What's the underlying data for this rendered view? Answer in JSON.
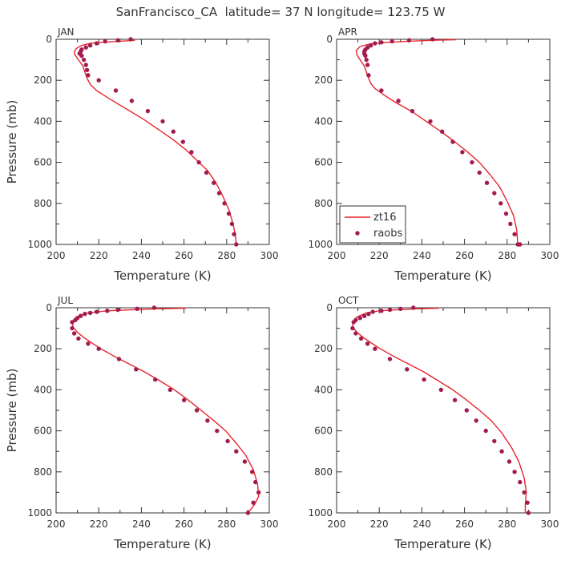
{
  "chart_data": {
    "type": "line",
    "title": "SanFrancisco_CA  latitude= 37 N longitude= 123.75 W",
    "xlabel": "Temperature (K)",
    "ylabel": "Pressure (mb)",
    "xlim": [
      200,
      300
    ],
    "ylim": [
      1000,
      0
    ],
    "xticks": [
      "200",
      "220",
      "240",
      "260",
      "280",
      "300"
    ],
    "yticks": [
      "0",
      "200",
      "400",
      "600",
      "800",
      "1000"
    ],
    "legend": {
      "location": "lower-left",
      "panel": "APR",
      "entries": [
        "zt16",
        "raobs"
      ]
    },
    "colors": {
      "model": "#e8262c",
      "obs": "#a31c50",
      "axis": "#333333"
    },
    "panels": [
      {
        "month": "JAN",
        "model": {
          "name": "zt16",
          "temperature": [
            237,
            229,
            222,
            216,
            212,
            209.5,
            208.5,
            208.8,
            210.5,
            212.5,
            213.5,
            214.5,
            216,
            219,
            225,
            233,
            241,
            248,
            255,
            261,
            266,
            271,
            275,
            278,
            281,
            283,
            284,
            284.5
          ],
          "pressure": [
            5,
            10,
            15,
            20,
            30,
            45,
            60,
            75,
            100,
            130,
            160,
            190,
            220,
            250,
            290,
            340,
            390,
            440,
            490,
            540,
            590,
            640,
            700,
            760,
            830,
            900,
            950,
            1000
          ]
        },
        "raobs": {
          "name": "raobs",
          "temperature": [
            235,
            229,
            223,
            219,
            216,
            214,
            212,
            211.5,
            211,
            212,
            213,
            214,
            214.5,
            215,
            220,
            228,
            235.5,
            243,
            250,
            255,
            259.5,
            263.5,
            267,
            270.5,
            274,
            276.5,
            279,
            281,
            282.5,
            283.5,
            284.5
          ],
          "pressure": [
            0,
            5,
            10,
            20,
            30,
            40,
            50,
            60,
            70,
            80,
            100,
            125,
            150,
            175,
            200,
            250,
            300,
            350,
            400,
            450,
            500,
            550,
            600,
            650,
            700,
            750,
            800,
            850,
            900,
            950,
            1000
          ]
        }
      },
      {
        "month": "APR",
        "model": {
          "name": "zt16",
          "temperature": [
            256,
            244,
            233,
            224,
            216,
            211,
            209.2,
            209.5,
            211,
            213,
            214,
            215,
            216,
            218,
            222,
            228,
            235,
            242,
            249,
            255.5,
            261.5,
            267,
            272,
            276.5,
            280,
            283,
            284.5,
            285
          ],
          "pressure": [
            2,
            5,
            10,
            15,
            22,
            35,
            55,
            75,
            100,
            130,
            160,
            190,
            215,
            240,
            270,
            310,
            350,
            400,
            450,
            500,
            550,
            600,
            660,
            720,
            790,
            860,
            930,
            1000
          ]
        },
        "raobs": {
          "name": "raobs",
          "temperature": [
            245,
            234,
            226,
            221,
            218,
            216,
            214.5,
            213.5,
            213,
            213,
            213.5,
            214,
            214.5,
            215,
            221,
            229,
            235.5,
            244,
            249.5,
            254.5,
            259,
            263.5,
            267,
            270.5,
            274,
            277,
            279.5,
            281.5,
            283.5,
            285,
            286
          ],
          "pressure": [
            0,
            5,
            10,
            15,
            20,
            30,
            40,
            50,
            60,
            70,
            80,
            100,
            125,
            175,
            250,
            300,
            350,
            400,
            450,
            500,
            550,
            600,
            650,
            700,
            750,
            800,
            850,
            900,
            950,
            1000,
            1000
          ]
        }
      },
      {
        "month": "JUL",
        "model": {
          "name": "zt16",
          "temperature": [
            261,
            248,
            235,
            224,
            215,
            209.5,
            207.5,
            208,
            210,
            213,
            216.5,
            221,
            227,
            233.5,
            241,
            248.5,
            255.5,
            262,
            268,
            274,
            279.5,
            284.5,
            289,
            292.5,
            294.5,
            295,
            293,
            290
          ],
          "pressure": [
            2,
            5,
            10,
            15,
            25,
            45,
            70,
            95,
            120,
            145,
            170,
            200,
            235,
            270,
            310,
            355,
            400,
            450,
            500,
            550,
            600,
            660,
            720,
            790,
            860,
            920,
            960,
            1000
          ]
        },
        "raobs": {
          "name": "raobs",
          "temperature": [
            246,
            238,
            229,
            224,
            219,
            216,
            213.5,
            211.5,
            210,
            209,
            207.5,
            207.5,
            208.5,
            210.5,
            215,
            220,
            229.5,
            237.5,
            246.5,
            253.5,
            260,
            266,
            271,
            275.5,
            280.5,
            284.5,
            288.5,
            292,
            293.5,
            295,
            292.5,
            290
          ],
          "pressure": [
            0,
            5,
            10,
            15,
            20,
            25,
            30,
            40,
            50,
            60,
            70,
            100,
            125,
            150,
            175,
            200,
            250,
            300,
            350,
            400,
            450,
            500,
            550,
            600,
            650,
            700,
            750,
            800,
            850,
            900,
            950,
            1000
          ]
        }
      },
      {
        "month": "OCT",
        "model": {
          "name": "zt16",
          "temperature": [
            248,
            238,
            228,
            220,
            214,
            209.5,
            207.5,
            207.7,
            209.5,
            212.5,
            216,
            220.5,
            226.5,
            233,
            240.5,
            247.5,
            254.5,
            261,
            267,
            272.5,
            277.5,
            282,
            285.5,
            288,
            289,
            288.5,
            288.5
          ],
          "pressure": [
            2,
            5,
            10,
            15,
            25,
            45,
            70,
            95,
            120,
            145,
            170,
            200,
            235,
            270,
            310,
            355,
            400,
            450,
            500,
            550,
            610,
            680,
            750,
            830,
            900,
            960,
            1000
          ]
        },
        "raobs": {
          "name": "raobs",
          "temperature": [
            236,
            230,
            225,
            221,
            217,
            215,
            213,
            211,
            209,
            208,
            207.5,
            209,
            211.5,
            214.5,
            218,
            225,
            233,
            241,
            249,
            255.5,
            261,
            265.5,
            270,
            274,
            277.5,
            281,
            283.5,
            286,
            288,
            289.5,
            290
          ],
          "pressure": [
            0,
            5,
            10,
            15,
            20,
            30,
            40,
            50,
            60,
            70,
            100,
            125,
            150,
            175,
            200,
            250,
            300,
            350,
            400,
            450,
            500,
            550,
            600,
            650,
            700,
            750,
            800,
            850,
            900,
            950,
            1000
          ]
        }
      }
    ]
  }
}
